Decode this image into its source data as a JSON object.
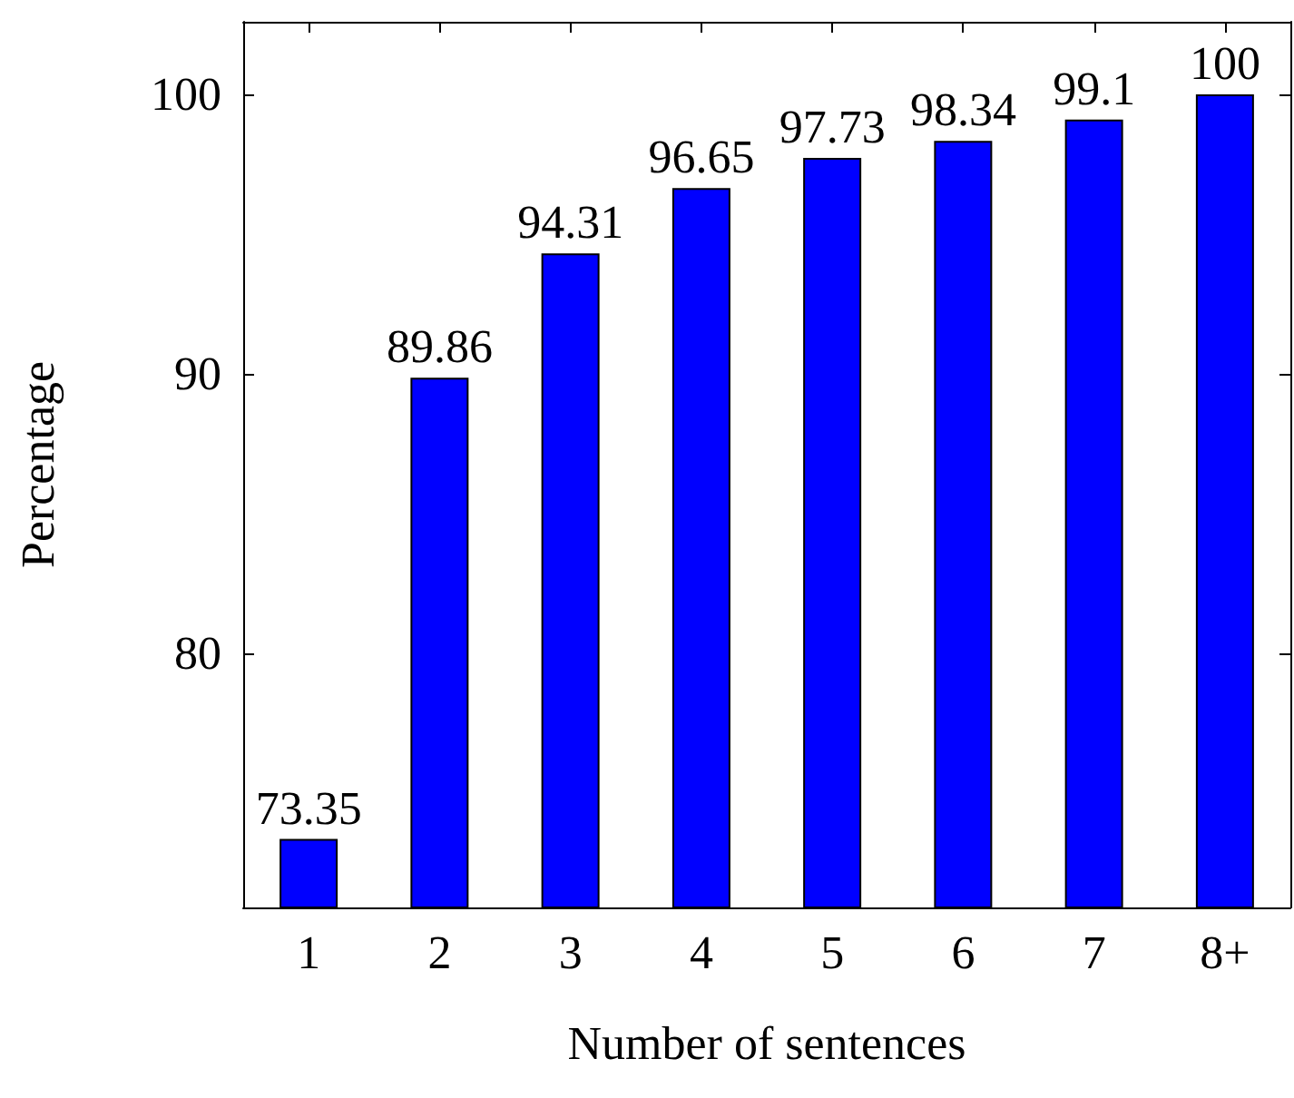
{
  "chart_data": {
    "type": "bar",
    "xlabel": "Number of sentences",
    "ylabel": "Percentage",
    "categories": [
      "1",
      "2",
      "3",
      "4",
      "5",
      "6",
      "7",
      "8+"
    ],
    "values": [
      73.35,
      89.86,
      94.31,
      96.65,
      97.73,
      98.34,
      99.1,
      100
    ],
    "color": "#0000ff",
    "ylim": [
      70.9,
      102.6
    ],
    "yticks": [
      80,
      90,
      100
    ],
    "grid": false,
    "data_labels": true
  }
}
